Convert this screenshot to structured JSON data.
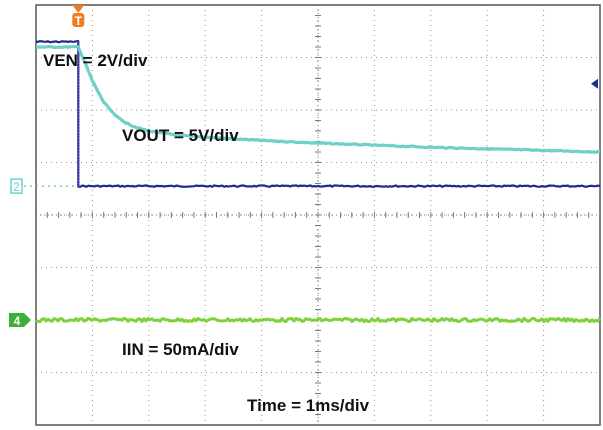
{
  "chart_data": {
    "type": "line",
    "title": "",
    "xlabel": "",
    "ylabel": "",
    "grid": true,
    "divisions": {
      "x": 10,
      "y": 8
    },
    "xlim": [
      0,
      10
    ],
    "ylim": [
      -4,
      4
    ],
    "trigger_marker": {
      "label": "T",
      "time_div": 0.75
    },
    "channel_markers": [
      {
        "label": "2",
        "level_div": 0.55,
        "color": "#6fd0c8"
      },
      {
        "label": "4",
        "level_div": -2.0,
        "color": "#3cb039"
      }
    ],
    "right_marker": {
      "symbol": "◄",
      "level_div": 2.5,
      "color": "#1e2a8c"
    },
    "annotations": [
      {
        "text": "VEN = 2V/div"
      },
      {
        "text": "VOUT = 5V/div"
      },
      {
        "text": "IIN = 50mA/div"
      },
      {
        "text": "Time = 1ms/div"
      }
    ],
    "series": [
      {
        "trace": "ven",
        "color": "#1e2a8c",
        "x": [
          0,
          0.75,
          0.75,
          10
        ],
        "y": [
          3.3,
          3.3,
          0.55,
          0.55
        ]
      },
      {
        "trace": "vout",
        "color": "#6fd0c8",
        "x": [
          0,
          0.75,
          0.85,
          1.0,
          1.2,
          1.4,
          1.6,
          1.8,
          2.0,
          2.5,
          3.0,
          4.0,
          5.0,
          6.0,
          7.0,
          8.0,
          9.0,
          10.0
        ],
        "y": [
          3.2,
          3.2,
          2.95,
          2.55,
          2.15,
          1.9,
          1.75,
          1.66,
          1.6,
          1.52,
          1.48,
          1.42,
          1.37,
          1.33,
          1.29,
          1.26,
          1.23,
          1.2
        ]
      },
      {
        "trace": "iin",
        "color": "#7dd13a",
        "x": [
          0,
          10
        ],
        "y": [
          -2.0,
          -2.0
        ]
      }
    ]
  }
}
